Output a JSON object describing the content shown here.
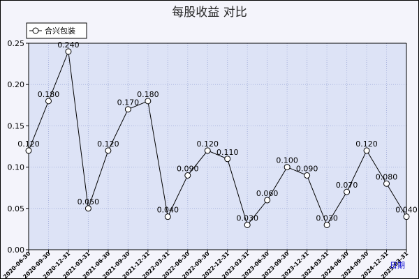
{
  "chart_data": {
    "type": "line",
    "title": "每股收益  对比",
    "xlabel": "日期",
    "ylabel": "",
    "ylim": [
      0,
      0.25
    ],
    "yticks": [
      "0.00",
      "0.05",
      "0.10",
      "0.15",
      "0.20",
      "0.25"
    ],
    "grid": true,
    "legend_position": "top-left",
    "colors": {
      "line": "#000000",
      "plot_bg": "#dde3f6",
      "grid": "#aab4dd",
      "xlabel": "#0000cc"
    },
    "categories": [
      "2020-06-30",
      "2020-09-30",
      "2020-12-31",
      "2021-03-31",
      "2021-06-30",
      "2021-09-30",
      "2021-12-31",
      "2022-03-31",
      "2022-06-30",
      "2022-09-30",
      "2022-12-31",
      "2023-03-31",
      "2023-06-30",
      "2023-09-30",
      "2023-12-31",
      "2024-03-31",
      "2024-06-30",
      "2024-09-30",
      "2024-12-31",
      "2025-03-31"
    ],
    "series": [
      {
        "name": "合兴包装",
        "values": [
          0.12,
          0.18,
          0.24,
          0.05,
          0.12,
          0.17,
          0.18,
          0.04,
          0.09,
          0.12,
          0.11,
          0.03,
          0.06,
          0.1,
          0.09,
          0.03,
          0.07,
          0.12,
          0.08,
          0.04
        ],
        "labels": [
          "0.120",
          "0.180",
          "0.240",
          "0.050",
          "0.120",
          "0.170",
          "0.180",
          "0.040",
          "0.090",
          "0.120",
          "0.110",
          "0.030",
          "0.060",
          "0.100",
          "0.090",
          "0.030",
          "0.070",
          "0.120",
          "0.080",
          "0.040"
        ]
      }
    ]
  }
}
